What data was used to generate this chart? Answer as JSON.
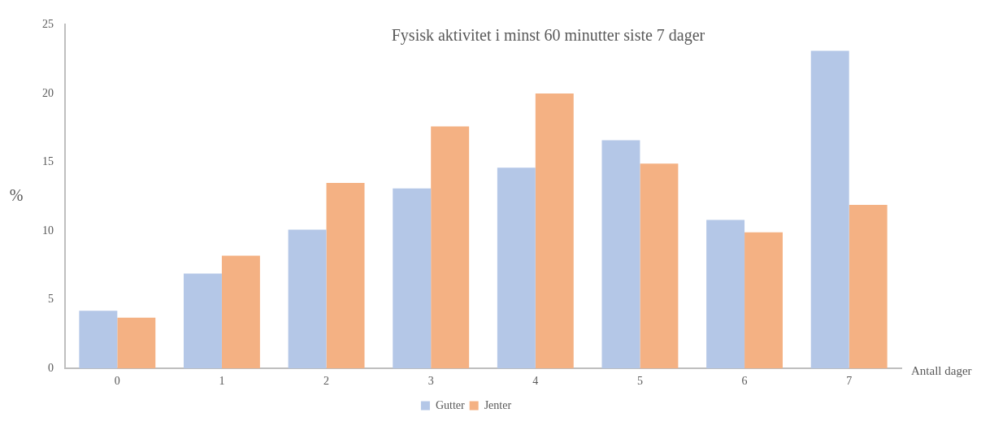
{
  "chart_data": {
    "type": "bar",
    "title": "Fysisk aktivitet i minst 60 minutter siste 7 dager",
    "xlabel": "Antall dager",
    "ylabel": "%",
    "categories": [
      "0",
      "1",
      "2",
      "3",
      "4",
      "5",
      "6",
      "7"
    ],
    "series": [
      {
        "name": "Gutter",
        "color": "#b4c7e7",
        "values": [
          4.2,
          6.9,
          10.1,
          13.1,
          14.6,
          16.6,
          10.8,
          23.1
        ]
      },
      {
        "name": "Jenter",
        "color": "#f4b183",
        "values": [
          3.7,
          8.2,
          13.5,
          17.6,
          20.0,
          14.9,
          9.9,
          11.9
        ]
      }
    ],
    "ylim": [
      0,
      25
    ],
    "yticks": [
      0,
      5,
      10,
      15,
      20,
      25
    ],
    "grid": false,
    "legend": "bottom"
  }
}
